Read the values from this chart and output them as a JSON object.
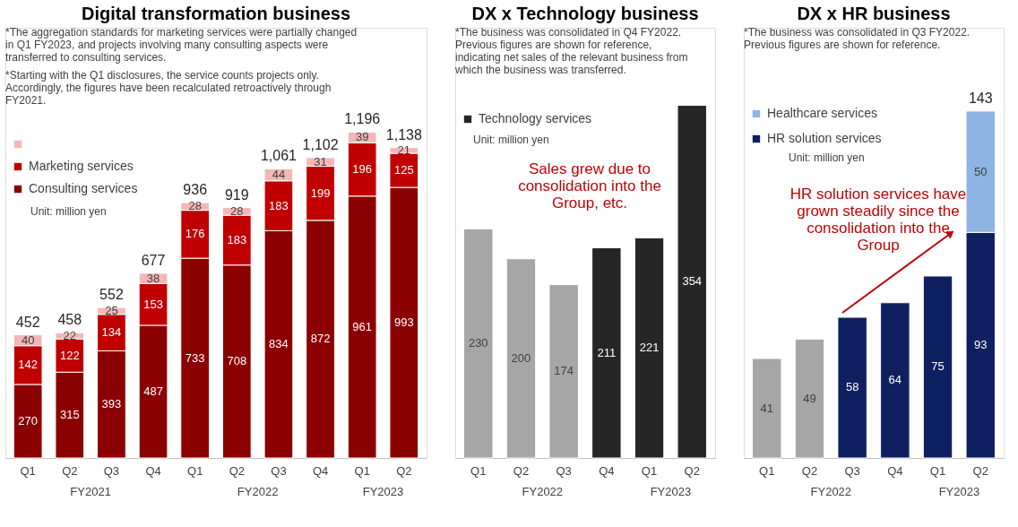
{
  "chart_data": [
    {
      "type": "bar",
      "stacked": true,
      "title": "Digital transformation business",
      "categories": [
        "Q1",
        "Q2",
        "Q3",
        "Q4",
        "Q1",
        "Q2",
        "Q3",
        "Q4",
        "Q1",
        "Q2"
      ],
      "series": [
        {
          "name": "Consulting services",
          "color": "#8b0000",
          "values": [
            270,
            315,
            393,
            487,
            733,
            708,
            834,
            872,
            961,
            993
          ]
        },
        {
          "name": "Marketing services",
          "color": "#c00000",
          "values": [
            142,
            122,
            134,
            153,
            176,
            183,
            183,
            199,
            196,
            125
          ]
        },
        {
          "color": "#f4b6b6",
          "values": [
            40,
            22,
            25,
            38,
            28,
            28,
            44,
            31,
            39,
            21
          ]
        }
      ],
      "data_labels": true,
      "totals": [
        "452",
        "458",
        "552",
        "677",
        "936",
        "919",
        "1,061",
        "1,102",
        "1,196",
        "1,138"
      ],
      "legend": "top left",
      "annotations": [
        "*The aggregation standards for marketing services were partially changed in Q1 FY2023, and projects involving many consulting aspects were transferred to consulting services.",
        "*Starting with the Q1 disclosures, the service counts projects only. Accordingly, the figures have been recalculated retroactively through FY2021.",
        "Unit: million yen",
        "FY2021",
        "FY2022",
        "FY2023"
      ]
    },
    {
      "type": "bar",
      "title": "DX x Technology business",
      "categories": [
        "Q1",
        "Q2",
        "Q3",
        "Q4",
        "Q1",
        "Q2"
      ],
      "series": [
        {
          "name": "Technology services",
          "color": "#262626",
          "colors": [
            "#a6a6a6",
            "#a6a6a6",
            "#a6a6a6",
            "#262626",
            "#262626",
            "#262626"
          ],
          "values": [
            230,
            200,
            174,
            211,
            221,
            354
          ]
        }
      ],
      "data_labels": true,
      "legend": "top left",
      "annotations": [
        "*The business was consolidated in Q4 FY2022. Previous figures are shown for reference, indicating net sales of the relevant business from which the business was transferred.",
        "Unit: million yen",
        "Sales grew due to consolidation into the Group, etc.",
        "FY2022",
        "FY2023"
      ]
    },
    {
      "type": "bar",
      "stacked": true,
      "title": "DX x HR business",
      "categories": [
        "Q1",
        "Q2",
        "Q3",
        "Q4",
        "Q1",
        "Q2"
      ],
      "series": [
        {
          "name": "HR solution services",
          "color": "#0f2060",
          "colors": [
            "#a6a6a6",
            "#a6a6a6",
            "#0f2060",
            "#0f2060",
            "#0f2060",
            "#0f2060"
          ],
          "values": [
            41,
            49,
            58,
            64,
            75,
            93
          ]
        },
        {
          "name": "Healthcare services",
          "color": "#8db4e2",
          "values": [
            null,
            null,
            null,
            null,
            null,
            50
          ]
        }
      ],
      "data_labels": true,
      "totals": [
        null,
        null,
        null,
        null,
        null,
        "143"
      ],
      "legend": "top left",
      "annotations": [
        "*The business was consolidated in Q3 FY2022. Previous figures are shown for reference.",
        "Unit: million yen",
        "HR solution services have grown steadily since the consolidation into the Group",
        "FY2022",
        "FY2023"
      ]
    }
  ]
}
